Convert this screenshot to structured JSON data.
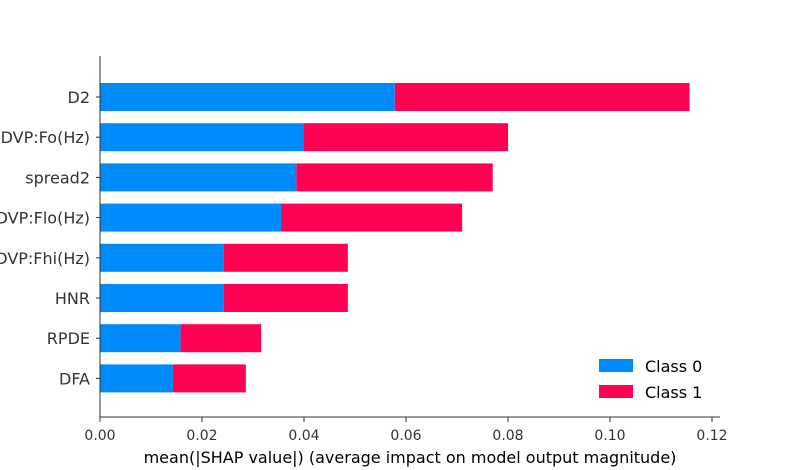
{
  "chart_data": {
    "type": "bar",
    "orientation": "horizontal",
    "stacked": true,
    "categories": [
      "D2",
      "MDVP:Fo(Hz)",
      "spread2",
      "MDVP:Flo(Hz)",
      "MDVP:Fhi(Hz)",
      "HNR",
      "RPDE",
      "DFA"
    ],
    "series": [
      {
        "name": "Class 0",
        "color": "#008bfb",
        "values": [
          0.0578,
          0.04,
          0.0385,
          0.0355,
          0.0243,
          0.0243,
          0.0158,
          0.0143
        ]
      },
      {
        "name": "Class 1",
        "color": "#ff0052",
        "values": [
          0.0578,
          0.04,
          0.0385,
          0.0355,
          0.0243,
          0.0243,
          0.0158,
          0.0143
        ]
      }
    ],
    "title": "",
    "xlabel": "mean(|SHAP value|) (average impact on model output magnitude)",
    "ylabel": "",
    "xlim": [
      0.0,
      0.12
    ],
    "xticks": [
      "0.00",
      "0.02",
      "0.04",
      "0.06",
      "0.08",
      "0.10",
      "0.12"
    ],
    "grid": false,
    "legend_position": "bottom-right"
  }
}
